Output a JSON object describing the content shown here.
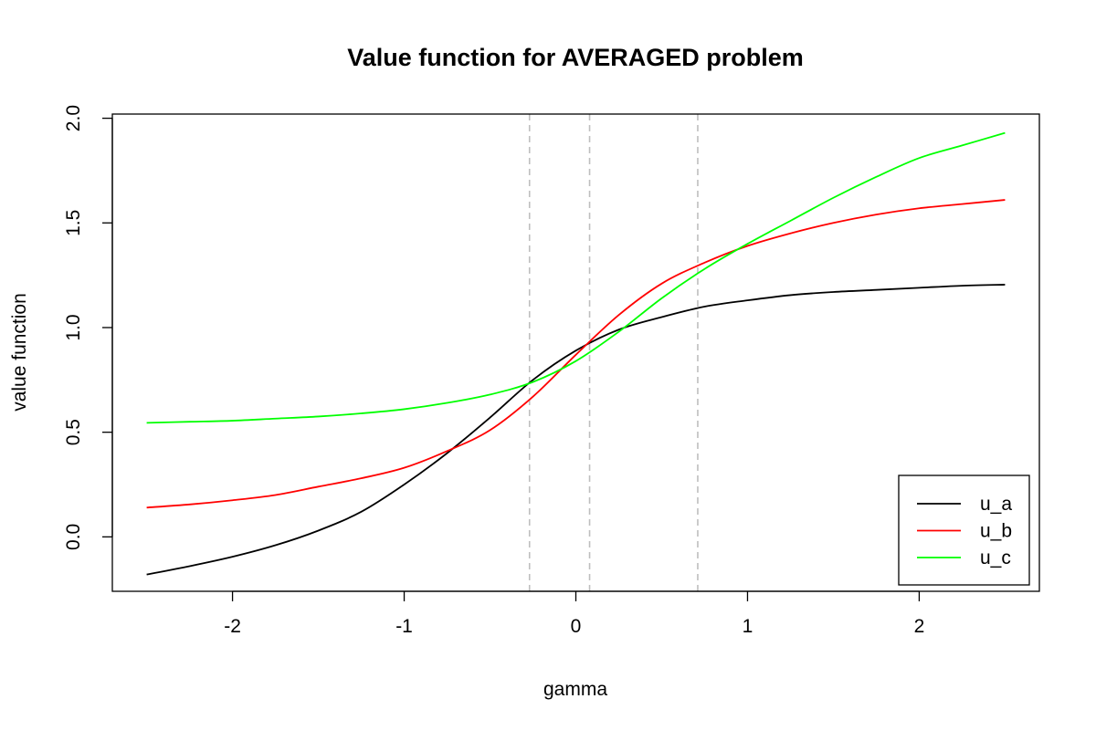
{
  "chart_data": {
    "type": "line",
    "title": "Value function for AVERAGED problem",
    "xlabel": "gamma",
    "ylabel": "value function",
    "xlim": [
      -2.7,
      2.7
    ],
    "ylim": [
      -0.26,
      2.02
    ],
    "x_ticks": [
      -2,
      -1,
      0,
      1,
      2
    ],
    "x_tick_labels": [
      "-2",
      "-1",
      "0",
      "1",
      "2"
    ],
    "y_ticks": [
      0.0,
      0.5,
      1.0,
      1.5,
      2.0
    ],
    "y_tick_labels": [
      "0.0",
      "0.5",
      "1.0",
      "1.5",
      "2.0"
    ],
    "vlines": [
      -0.27,
      0.08,
      0.71
    ],
    "vline_color": "#BEBEBE",
    "grid": false,
    "legend_position": "bottom-right",
    "x": [
      -2.5,
      -2.25,
      -2.0,
      -1.75,
      -1.5,
      -1.25,
      -1.0,
      -0.75,
      -0.5,
      -0.25,
      0.0,
      0.25,
      0.5,
      0.75,
      1.0,
      1.25,
      1.5,
      1.75,
      2.0,
      2.25,
      2.5
    ],
    "series": [
      {
        "name": "u_a",
        "color": "#000000",
        "values": [
          -0.18,
          -0.14,
          -0.095,
          -0.04,
          0.03,
          0.12,
          0.25,
          0.4,
          0.57,
          0.75,
          0.89,
          0.99,
          1.05,
          1.1,
          1.13,
          1.155,
          1.17,
          1.18,
          1.19,
          1.2,
          1.205
        ]
      },
      {
        "name": "u_b",
        "color": "#FF0000",
        "values": [
          0.14,
          0.155,
          0.175,
          0.2,
          0.24,
          0.28,
          0.33,
          0.41,
          0.51,
          0.67,
          0.87,
          1.06,
          1.21,
          1.31,
          1.39,
          1.45,
          1.5,
          1.54,
          1.57,
          1.59,
          1.61
        ]
      },
      {
        "name": "u_c",
        "color": "#00FF00",
        "values": [
          0.545,
          0.55,
          0.555,
          0.565,
          0.575,
          0.59,
          0.61,
          0.64,
          0.68,
          0.74,
          0.84,
          0.98,
          1.14,
          1.28,
          1.4,
          1.51,
          1.62,
          1.72,
          1.81,
          1.87,
          1.93
        ]
      }
    ]
  }
}
